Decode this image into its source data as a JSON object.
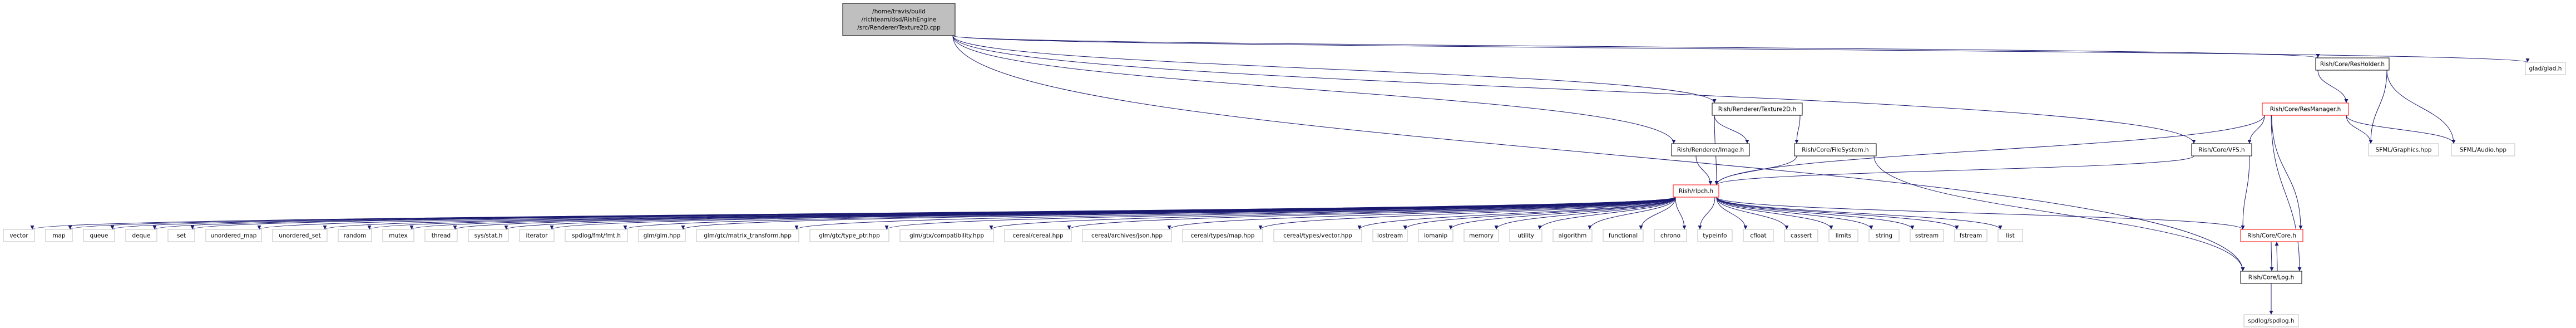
{
  "graph": {
    "colors": {
      "edge": "#191970",
      "focus_fill": "#bfbfbf",
      "documented_border": "#000000",
      "undocumented_border": "#bfbfbf",
      "truncated_border": "#ff0000"
    },
    "nodes": {
      "focus": {
        "lines": [
          "/home/travis/build",
          "/richteam/dsd/RishEngine",
          "/src/Renderer/Texture2D.cpp"
        ]
      },
      "glad": {
        "lines": [
          "glad/glad.h"
        ]
      },
      "resholder": {
        "lines": [
          "Rish/Core/ResHolder.h"
        ]
      },
      "resmanager": {
        "lines": [
          "Rish/Core/ResManager.h"
        ]
      },
      "texture2d": {
        "lines": [
          "Rish/Renderer/Texture2D.h"
        ]
      },
      "sfml_graphics": {
        "lines": [
          "SFML/Graphics.hpp"
        ]
      },
      "sfml_audio": {
        "lines": [
          "SFML/Audio.hpp"
        ]
      },
      "image": {
        "lines": [
          "Rish/Renderer/Image.h"
        ]
      },
      "filesystem": {
        "lines": [
          "Rish/Core/FileSystem.h"
        ]
      },
      "vfs": {
        "lines": [
          "Rish/Core/VFS.h"
        ]
      },
      "rishpch": {
        "lines": [
          "Rish/rlpch.h"
        ]
      },
      "core": {
        "lines": [
          "Rish/Core/Core.h"
        ]
      },
      "log": {
        "lines": [
          "Rish/Core/Log.h"
        ]
      },
      "spdlog": {
        "lines": [
          "spdlog/spdlog.h"
        ]
      },
      "vector": {
        "lines": [
          "vector"
        ]
      },
      "map": {
        "lines": [
          "map"
        ]
      },
      "queue": {
        "lines": [
          "queue"
        ]
      },
      "deque": {
        "lines": [
          "deque"
        ]
      },
      "set": {
        "lines": [
          "set"
        ]
      },
      "unordered_map": {
        "lines": [
          "unordered_map"
        ]
      },
      "unordered_set": {
        "lines": [
          "unordered_set"
        ]
      },
      "random": {
        "lines": [
          "random"
        ]
      },
      "mutex": {
        "lines": [
          "mutex"
        ]
      },
      "thread": {
        "lines": [
          "thread"
        ]
      },
      "sysstat": {
        "lines": [
          "sys/stat.h"
        ]
      },
      "iterator": {
        "lines": [
          "iterator"
        ]
      },
      "fmt": {
        "lines": [
          "spdlog/fmt/fmt.h"
        ]
      },
      "glm": {
        "lines": [
          "glm/glm.hpp"
        ]
      },
      "matrix_transform": {
        "lines": [
          "glm/gtc/matrix_transform.hpp"
        ]
      },
      "type_ptr": {
        "lines": [
          "glm/gtc/type_ptr.hpp"
        ]
      },
      "compatibility": {
        "lines": [
          "glm/gtx/compatibility.hpp"
        ]
      },
      "cereal": {
        "lines": [
          "cereal/cereal.hpp"
        ]
      },
      "json": {
        "lines": [
          "cereal/archives/json.hpp"
        ]
      },
      "cmap": {
        "lines": [
          "cereal/types/map.hpp"
        ]
      },
      "cvector": {
        "lines": [
          "cereal/types/vector.hpp"
        ]
      },
      "iostream": {
        "lines": [
          "iostream"
        ]
      },
      "iomanip": {
        "lines": [
          "iomanip"
        ]
      },
      "memory": {
        "lines": [
          "memory"
        ]
      },
      "utility": {
        "lines": [
          "utility"
        ]
      },
      "algorithm": {
        "lines": [
          "algorithm"
        ]
      },
      "functional": {
        "lines": [
          "functional"
        ]
      },
      "chrono": {
        "lines": [
          "chrono"
        ]
      },
      "typeinfo": {
        "lines": [
          "typeinfo"
        ]
      },
      "cfloat": {
        "lines": [
          "cfloat"
        ]
      },
      "cassert": {
        "lines": [
          "cassert"
        ]
      },
      "limits": {
        "lines": [
          "limits"
        ]
      },
      "string": {
        "lines": [
          "string"
        ]
      },
      "sstream": {
        "lines": [
          "sstream"
        ]
      },
      "fstream": {
        "lines": [
          "fstream"
        ]
      },
      "list": {
        "lines": [
          "list"
        ]
      }
    },
    "edges": [
      [
        "focus",
        "glad"
      ],
      [
        "focus",
        "resholder"
      ],
      [
        "focus",
        "texture2d"
      ],
      [
        "focus",
        "image"
      ],
      [
        "focus",
        "vfs"
      ],
      [
        "focus",
        "log"
      ],
      [
        "resholder",
        "resmanager"
      ],
      [
        "resholder",
        "sfml_graphics"
      ],
      [
        "resholder",
        "sfml_audio"
      ],
      [
        "resmanager",
        "sfml_graphics"
      ],
      [
        "resmanager",
        "sfml_audio"
      ],
      [
        "resmanager",
        "vfs"
      ],
      [
        "resmanager",
        "rishpch"
      ],
      [
        "resmanager",
        "core"
      ],
      [
        "resmanager",
        "log"
      ],
      [
        "texture2d",
        "image"
      ],
      [
        "texture2d",
        "filesystem"
      ],
      [
        "texture2d",
        "rishpch"
      ],
      [
        "image",
        "rishpch"
      ],
      [
        "filesystem",
        "rishpch"
      ],
      [
        "filesystem",
        "log"
      ],
      [
        "vfs",
        "rishpch"
      ],
      [
        "vfs",
        "core"
      ],
      [
        "rishpch",
        "vector"
      ],
      [
        "rishpch",
        "map"
      ],
      [
        "rishpch",
        "queue"
      ],
      [
        "rishpch",
        "deque"
      ],
      [
        "rishpch",
        "set"
      ],
      [
        "rishpch",
        "unordered_map"
      ],
      [
        "rishpch",
        "unordered_set"
      ],
      [
        "rishpch",
        "random"
      ],
      [
        "rishpch",
        "mutex"
      ],
      [
        "rishpch",
        "thread"
      ],
      [
        "rishpch",
        "sysstat"
      ],
      [
        "rishpch",
        "iterator"
      ],
      [
        "rishpch",
        "fmt"
      ],
      [
        "rishpch",
        "glm"
      ],
      [
        "rishpch",
        "matrix_transform"
      ],
      [
        "rishpch",
        "type_ptr"
      ],
      [
        "rishpch",
        "compatibility"
      ],
      [
        "rishpch",
        "cereal"
      ],
      [
        "rishpch",
        "json"
      ],
      [
        "rishpch",
        "cmap"
      ],
      [
        "rishpch",
        "cvector"
      ],
      [
        "rishpch",
        "iostream"
      ],
      [
        "rishpch",
        "iomanip"
      ],
      [
        "rishpch",
        "memory"
      ],
      [
        "rishpch",
        "utility"
      ],
      [
        "rishpch",
        "algorithm"
      ],
      [
        "rishpch",
        "functional"
      ],
      [
        "rishpch",
        "chrono"
      ],
      [
        "rishpch",
        "typeinfo"
      ],
      [
        "rishpch",
        "cfloat"
      ],
      [
        "rishpch",
        "cassert"
      ],
      [
        "rishpch",
        "limits"
      ],
      [
        "rishpch",
        "string"
      ],
      [
        "rishpch",
        "sstream"
      ],
      [
        "rishpch",
        "fstream"
      ],
      [
        "rishpch",
        "list"
      ],
      [
        "rishpch",
        "core"
      ],
      [
        "core",
        "log"
      ],
      [
        "log",
        "core"
      ],
      [
        "log",
        "spdlog"
      ]
    ]
  }
}
